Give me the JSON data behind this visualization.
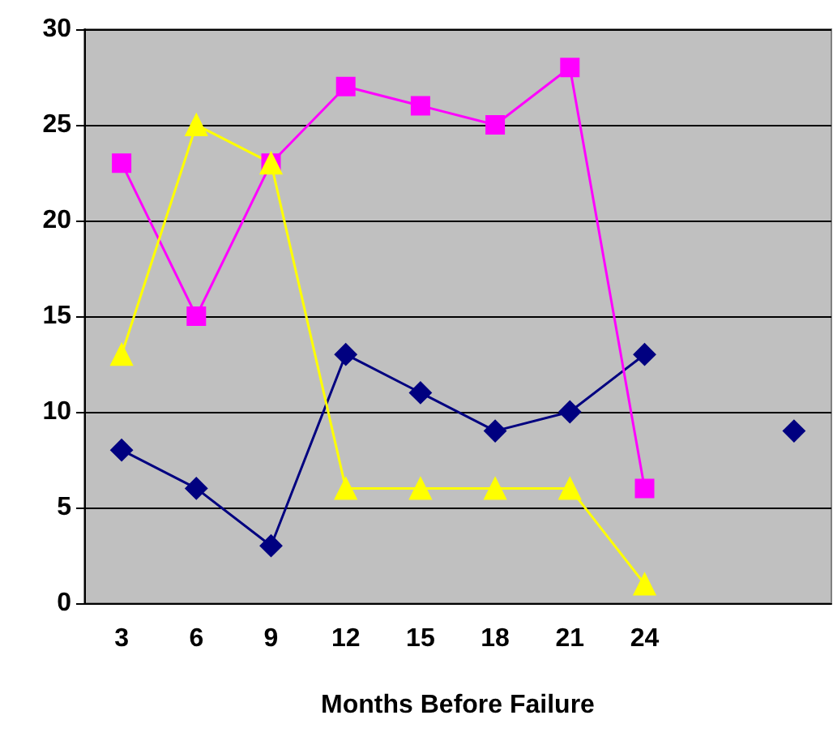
{
  "chart_data": {
    "type": "line",
    "xlabel": "Months Before Failure",
    "categories": [
      "3",
      "6",
      "9",
      "12",
      "15",
      "18",
      "21",
      "24",
      null,
      null
    ],
    "series": [
      {
        "color": "#000080",
        "marker": "diamond",
        "values": [
          8,
          6,
          3,
          13,
          11,
          9,
          10,
          13,
          null,
          9
        ]
      },
      {
        "color": "#ff00ff",
        "marker": "square",
        "values": [
          23,
          15,
          23,
          27,
          26,
          25,
          28,
          6,
          null,
          null
        ]
      },
      {
        "color": "#ffff00",
        "marker": "triangle",
        "values": [
          13,
          25,
          23,
          6,
          6,
          6,
          6,
          1,
          null,
          null
        ]
      }
    ],
    "ylim": [
      0,
      30
    ],
    "yticks": [
      0,
      5,
      10,
      15,
      20,
      25,
      30
    ],
    "grid": "y",
    "line_style": "solid"
  }
}
